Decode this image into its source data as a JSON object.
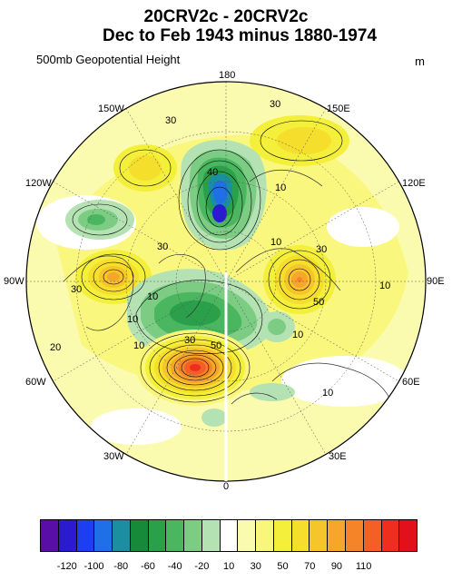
{
  "title": {
    "line1": "20CRV2c - 20CRV2c",
    "line2": "Dec to Feb 1943 minus 1880-1974"
  },
  "subtitle": "500mb Geopotential Height",
  "units": "m",
  "longitude_labels": {
    "lon_180": "180",
    "lon_150W": "150W",
    "lon_150E": "150E",
    "lon_120W": "120W",
    "lon_120E": "120E",
    "lon_90W": "90W",
    "lon_90E": "90E",
    "lon_60W": "60W",
    "lon_60E": "60E",
    "lon_30W": "30W",
    "lon_30E": "30E",
    "lon_0": "0"
  },
  "contour_labels": [
    "30",
    "30",
    "40",
    "10",
    "10",
    "30",
    "30",
    "30",
    "10",
    "50",
    "10",
    "10",
    "20",
    "10",
    "30",
    "50",
    "10",
    "10"
  ],
  "colorbar": {
    "colors": [
      "#5a0ea8",
      "#2a1bd0",
      "#1e3ff0",
      "#1f6fe6",
      "#1a8fa0",
      "#178a3a",
      "#2aa04a",
      "#4bb660",
      "#7ccc84",
      "#b5e2b3",
      "#ffffff",
      "#fbfbb0",
      "#faf679",
      "#f3ef3a",
      "#f5de2c",
      "#f6c52c",
      "#f6a62a",
      "#f58428",
      "#f35f24",
      "#ef2f1e",
      "#e2101a"
    ],
    "labels": [
      "-120",
      "-100",
      "-80",
      "-60",
      "-40",
      "-20",
      "10",
      "30",
      "50",
      "70",
      "90",
      "110"
    ]
  }
}
